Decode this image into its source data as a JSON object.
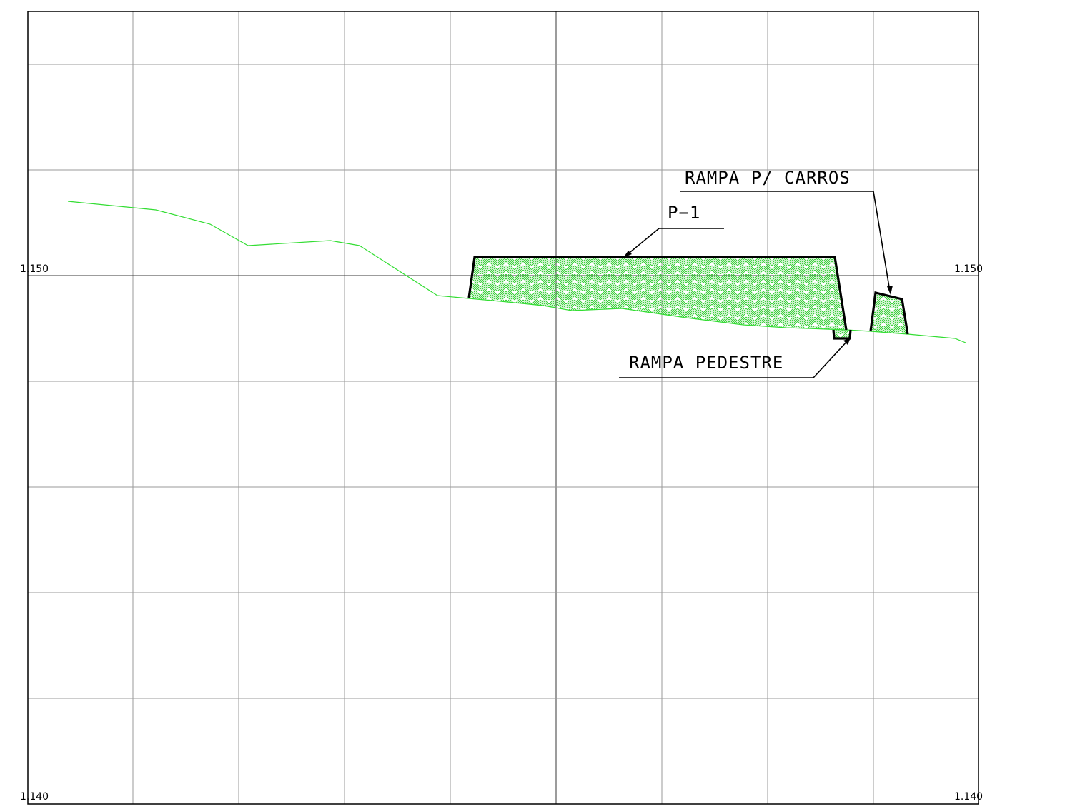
{
  "elevation_labels": {
    "left_upper": "1.150",
    "right_upper": "1.150",
    "left_lower": "1.140",
    "right_lower": "1.140"
  },
  "annotations": {
    "p1": "P−1",
    "rampa_carros": "RAMPA P/ CARROS",
    "rampa_pedestre": "RAMPA PEDESTRE"
  },
  "colors": {
    "terrain_line": "#33dd33",
    "hatch": "#33cc33",
    "grid": "#9a9a9a",
    "outline": "#000000"
  }
}
